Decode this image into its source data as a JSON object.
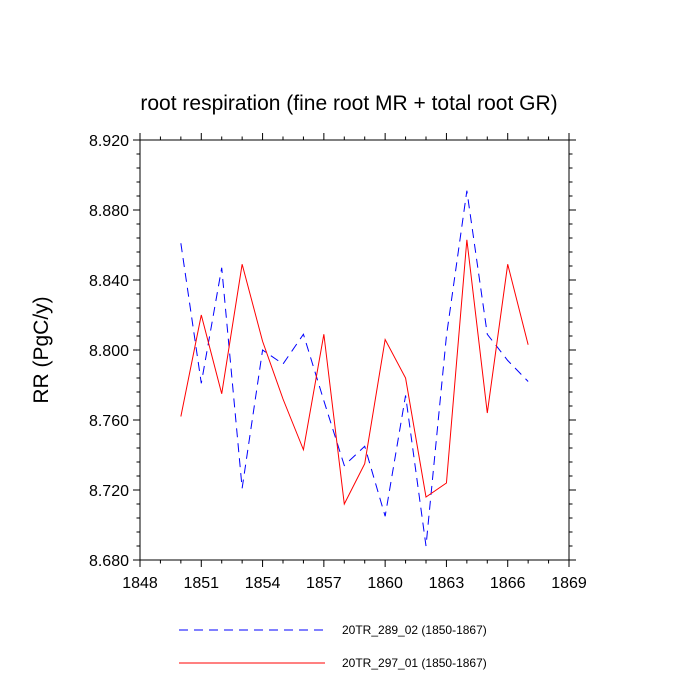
{
  "chart_data": {
    "type": "line",
    "title": "root respiration (fine root MR + total root GR)",
    "xlabel": "",
    "ylabel": "RR  (PgC/y)",
    "xlim": [
      1848,
      1869
    ],
    "ylim": [
      8.68,
      8.92
    ],
    "xticks": [
      1848,
      1851,
      1854,
      1857,
      1860,
      1863,
      1866,
      1869
    ],
    "xtick_labels": [
      "1848",
      "1851",
      "1854",
      "1857",
      "1860",
      "1863",
      "1866",
      "1869"
    ],
    "yticks": [
      8.68,
      8.72,
      8.76,
      8.8,
      8.84,
      8.88,
      8.92
    ],
    "ytick_labels": [
      "8.680",
      "8.720",
      "8.760",
      "8.800",
      "8.840",
      "8.880",
      "8.920"
    ],
    "x": [
      1850,
      1851,
      1852,
      1853,
      1854,
      1855,
      1856,
      1857,
      1858,
      1859,
      1860,
      1861,
      1862,
      1863,
      1864,
      1865,
      1866,
      1867
    ],
    "series": [
      {
        "name": "20TR_289_02 (1850-1867)",
        "color": "#0000ff",
        "style": "dashed",
        "values": [
          8.861,
          8.781,
          8.847,
          8.721,
          8.8,
          8.792,
          8.809,
          8.771,
          8.734,
          8.745,
          8.705,
          8.774,
          8.688,
          8.808,
          8.891,
          8.809,
          8.794,
          8.782
        ]
      },
      {
        "name": "20TR_297_01 (1850-1867)",
        "color": "#ff0000",
        "style": "solid",
        "values": [
          8.762,
          8.82,
          8.775,
          8.849,
          8.805,
          8.772,
          8.743,
          8.809,
          8.712,
          8.735,
          8.806,
          8.784,
          8.716,
          8.724,
          8.863,
          8.764,
          8.849,
          8.803
        ]
      }
    ],
    "legend_position": "bottom"
  }
}
